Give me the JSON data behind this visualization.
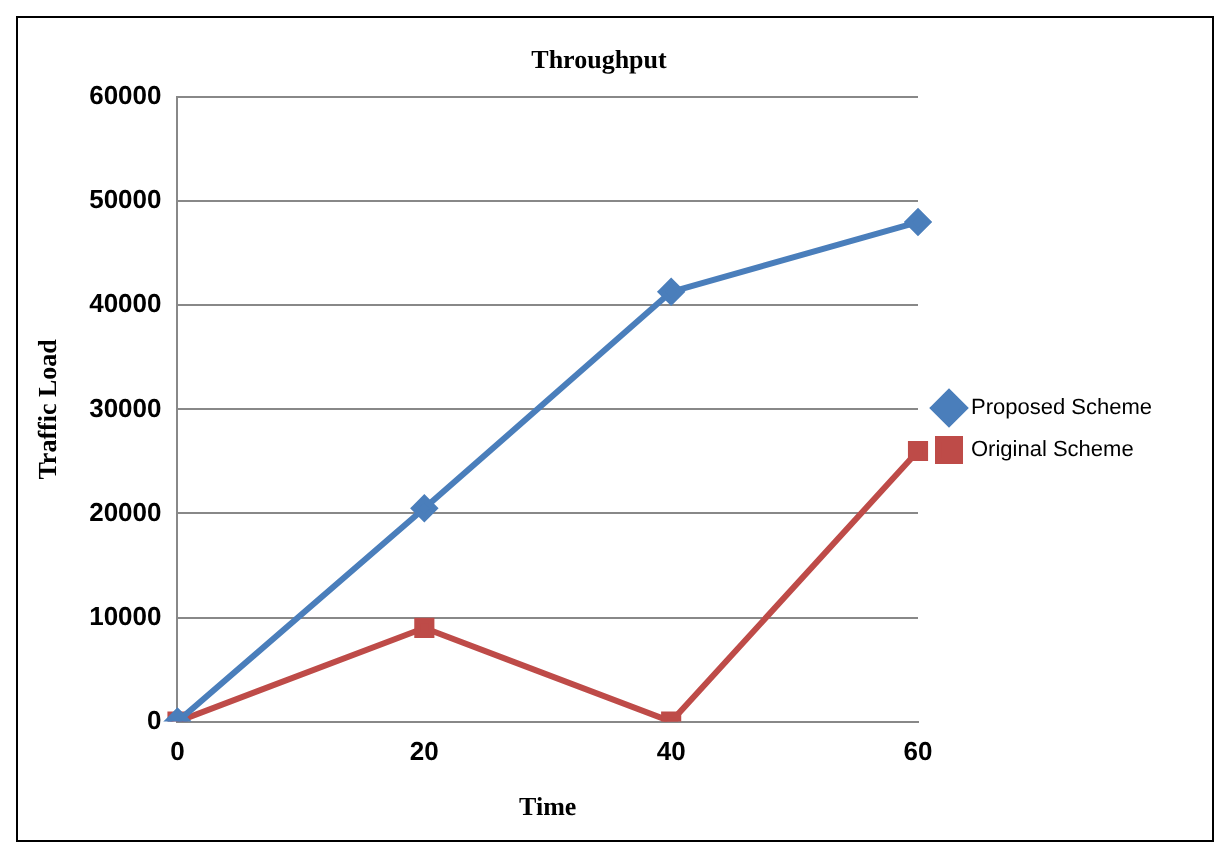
{
  "chart_data": {
    "type": "line",
    "title": "Throughput",
    "xlabel": "Time",
    "ylabel": "Traffic Load",
    "categories": [
      "0",
      "20",
      "40",
      "60"
    ],
    "series": [
      {
        "name": "Proposed Scheme",
        "color": "#4a7ebb",
        "marker": "diamond",
        "values": [
          0,
          20500,
          41300,
          48000
        ]
      },
      {
        "name": "Original Scheme",
        "color": "#be4b48",
        "marker": "square",
        "values": [
          0,
          9000,
          0,
          26000
        ]
      }
    ],
    "ylim": [
      0,
      60000
    ],
    "yticks": [
      0,
      10000,
      20000,
      30000,
      40000,
      50000,
      60000
    ],
    "grid": "y",
    "legend": "right"
  }
}
